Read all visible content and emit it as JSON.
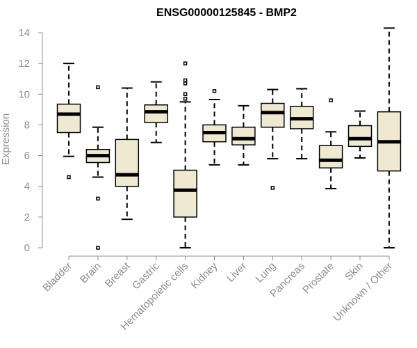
{
  "chart_data": {
    "type": "boxplot",
    "title": "ENSG00000125845 - BMP2",
    "ylabel": "Expression",
    "xlabel": "",
    "ylim": [
      0,
      14.3
    ],
    "yticks": [
      0,
      2,
      4,
      6,
      8,
      10,
      12,
      14
    ],
    "box_color": "#efe9d1",
    "categories": [
      "Bladder",
      "Brain",
      "Breast",
      "Gastric",
      "Hematopoietic cells",
      "Kidney",
      "Liver",
      "Lung",
      "Pancreas",
      "Prostate",
      "Skin",
      "Unknown / Other"
    ],
    "boxes": [
      {
        "category": "Bladder",
        "whisker_low": 5.95,
        "q1": 7.5,
        "median": 8.7,
        "q3": 9.35,
        "whisker_high": 12.0,
        "outliers": [
          4.6
        ]
      },
      {
        "category": "Brain",
        "whisker_low": 4.6,
        "q1": 5.55,
        "median": 6.0,
        "q3": 6.4,
        "whisker_high": 7.85,
        "outliers": [
          10.45,
          3.2,
          0.0
        ]
      },
      {
        "category": "Breast",
        "whisker_low": 1.85,
        "q1": 4.0,
        "median": 4.75,
        "q3": 7.05,
        "whisker_high": 10.4,
        "outliers": []
      },
      {
        "category": "Gastric",
        "whisker_low": 6.85,
        "q1": 8.15,
        "median": 8.85,
        "q3": 9.3,
        "whisker_high": 10.8,
        "outliers": []
      },
      {
        "category": "Hematopoietic cells",
        "whisker_low": 0.0,
        "q1": 2.0,
        "median": 3.75,
        "q3": 5.05,
        "whisker_high": 9.5,
        "outliers": [
          12.0,
          10.9,
          10.7,
          10.0,
          9.7
        ]
      },
      {
        "category": "Kidney",
        "whisker_low": 5.4,
        "q1": 6.9,
        "median": 7.5,
        "q3": 8.0,
        "whisker_high": 9.65,
        "outliers": [
          10.2
        ]
      },
      {
        "category": "Liver",
        "whisker_low": 5.4,
        "q1": 6.7,
        "median": 7.1,
        "q3": 7.85,
        "whisker_high": 9.25,
        "outliers": []
      },
      {
        "category": "Lung",
        "whisker_low": 5.8,
        "q1": 7.85,
        "median": 8.8,
        "q3": 9.4,
        "whisker_high": 10.3,
        "outliers": [
          3.9
        ]
      },
      {
        "category": "Pancreas",
        "whisker_low": 5.8,
        "q1": 7.75,
        "median": 8.4,
        "q3": 9.2,
        "whisker_high": 10.35,
        "outliers": []
      },
      {
        "category": "Prostate",
        "whisker_low": 3.85,
        "q1": 5.2,
        "median": 5.7,
        "q3": 6.65,
        "whisker_high": 7.55,
        "outliers": [
          9.6
        ]
      },
      {
        "category": "Skin",
        "whisker_low": 5.85,
        "q1": 6.6,
        "median": 7.1,
        "q3": 7.95,
        "whisker_high": 8.9,
        "outliers": []
      },
      {
        "category": "Unknown / Other",
        "whisker_low": 0.0,
        "q1": 5.0,
        "median": 6.9,
        "q3": 8.85,
        "whisker_high": 14.3,
        "outliers": []
      }
    ]
  }
}
